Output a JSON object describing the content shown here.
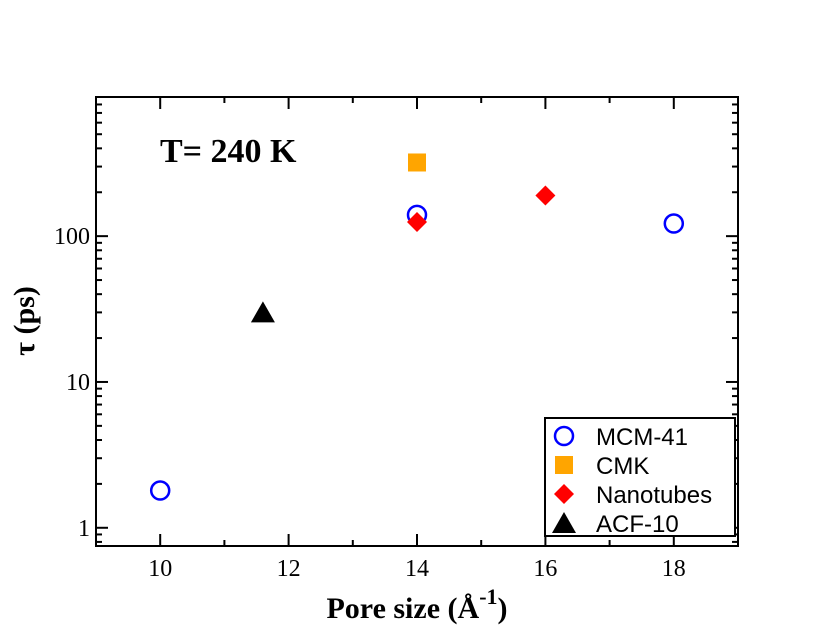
{
  "chart_data": {
    "type": "scatter",
    "annotation": "T= 240 K",
    "xlabel": "Pore size (Å",
    "xlabel_sup": "-1",
    "xlabel_close": ")",
    "ylabel": "τ (ps)",
    "xlim": [
      9,
      19
    ],
    "ylim": [
      0.75,
      900
    ],
    "yscale": "log",
    "x_ticks": [
      10,
      12,
      14,
      16,
      18
    ],
    "x_tick_labels": [
      "10",
      "12",
      "14",
      "16",
      "18"
    ],
    "y_ticks": [
      1,
      10,
      100
    ],
    "y_tick_labels": [
      "1",
      "10",
      "100"
    ],
    "legend_position": "bottom-right",
    "series": [
      {
        "name": "MCM-41",
        "marker": "circle-open",
        "color": "#0000ff",
        "points": [
          {
            "x": 10,
            "y": 1.8
          },
          {
            "x": 14,
            "y": 140
          },
          {
            "x": 18,
            "y": 122
          }
        ]
      },
      {
        "name": "CMK",
        "marker": "square",
        "color": "#ffa500",
        "points": [
          {
            "x": 14,
            "y": 320
          }
        ]
      },
      {
        "name": "Nanotubes",
        "marker": "diamond",
        "color": "#ff0000",
        "points": [
          {
            "x": 14,
            "y": 125
          },
          {
            "x": 16,
            "y": 190
          }
        ]
      },
      {
        "name": "ACF-10",
        "marker": "triangle",
        "color": "#000000",
        "points": [
          {
            "x": 11.6,
            "y": 30
          }
        ]
      }
    ]
  }
}
